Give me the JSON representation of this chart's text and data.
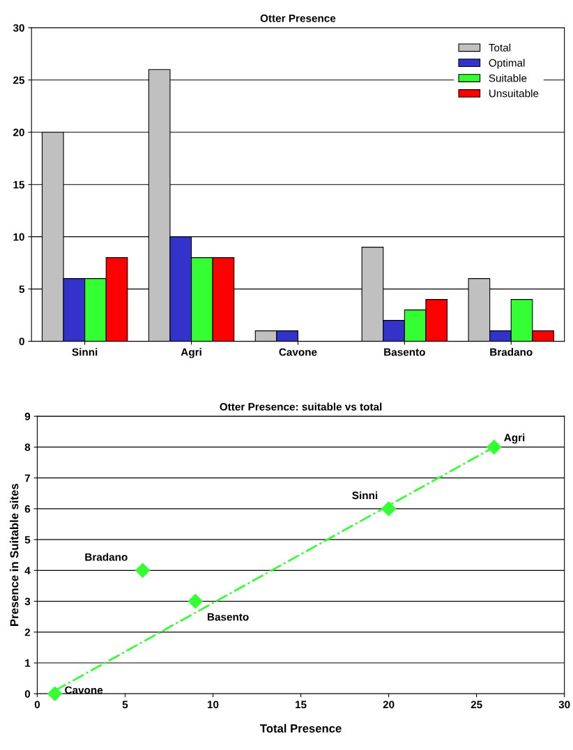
{
  "chart_data": [
    {
      "type": "bar",
      "title": "Otter Presence",
      "categories": [
        "Sinni",
        "Agri",
        "Cavone",
        "Basento",
        "Bradano"
      ],
      "series": [
        {
          "name": "Total",
          "color": "#c0c0c0",
          "values": [
            20,
            26,
            1,
            9,
            6
          ]
        },
        {
          "name": "Optimal",
          "color": "#3333cc",
          "values": [
            6,
            10,
            1,
            2,
            1
          ]
        },
        {
          "name": "Suitable",
          "color": "#33ff33",
          "values": [
            6,
            8,
            0,
            3,
            4
          ]
        },
        {
          "name": "Unsuitable",
          "color": "#ff0000",
          "values": [
            8,
            8,
            0,
            4,
            1
          ]
        }
      ],
      "ylim": [
        0,
        30
      ],
      "yticks": [
        0,
        5,
        10,
        15,
        20,
        25,
        30
      ],
      "grid": "y",
      "legend": "top right"
    },
    {
      "type": "scatter",
      "title": "Otter Presence: suitable vs total",
      "xlabel": "Total Presence",
      "ylabel": "Presence in Suitable sites",
      "x": [
        20,
        26,
        1,
        9,
        6
      ],
      "series": [
        {
          "color": "#33ff33",
          "values": [
            6,
            8,
            0,
            3,
            4
          ],
          "marker": "diamond"
        },
        {
          "type": "line",
          "color": "#33ff33",
          "x": [
            1,
            26
          ],
          "values": [
            0.1,
            8
          ],
          "line_style": "dashed"
        }
      ],
      "annotations": [
        {
          "text": "Sinni",
          "x": 20,
          "y": 6
        },
        {
          "text": "Agri",
          "x": 26,
          "y": 8
        },
        {
          "text": "Cavone",
          "x": 1,
          "y": 0
        },
        {
          "text": "Basento",
          "x": 9,
          "y": 3
        },
        {
          "text": "Bradano",
          "x": 6,
          "y": 4
        }
      ],
      "xlim": [
        0,
        30
      ],
      "xticks": [
        0,
        5,
        10,
        15,
        20,
        25,
        30
      ],
      "ylim": [
        0,
        9
      ],
      "yticks": [
        0,
        1,
        2,
        3,
        4,
        5,
        6,
        7,
        8,
        9
      ],
      "grid": "y"
    }
  ]
}
